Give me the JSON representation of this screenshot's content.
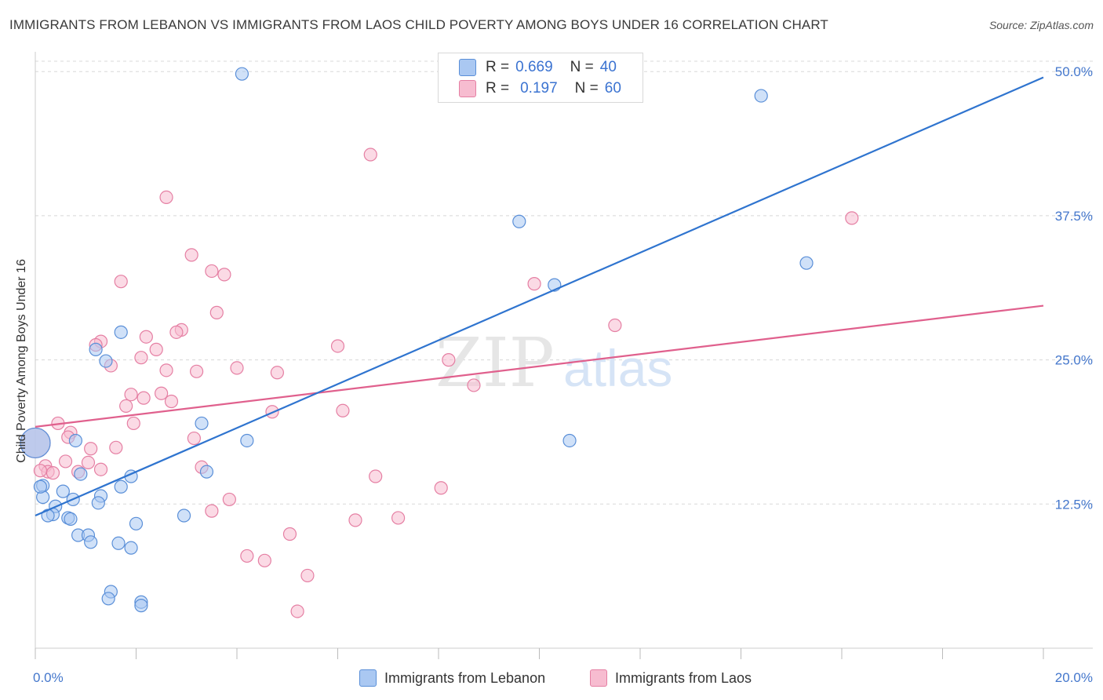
{
  "title": "IMMIGRANTS FROM LEBANON VS IMMIGRANTS FROM LAOS CHILD POVERTY AMONG BOYS UNDER 16 CORRELATION CHART",
  "source": "Source: ZipAtlas.com",
  "colors": {
    "blue_fill": "#aac8f2",
    "blue_stroke": "#5a8fd8",
    "blue_line": "#2f74cf",
    "pink_fill": "#f7bcd0",
    "pink_stroke": "#e57fa3",
    "pink_line": "#e0608d",
    "grid": "#d8d8d8",
    "text_accent": "#3b73d1"
  },
  "legend": {
    "row1": {
      "r_label": "R =",
      "r_value": "0.669",
      "n_label": "N =",
      "n_value": "40"
    },
    "row2": {
      "r_label": "R =",
      "r_value": "0.197",
      "n_label": "N =",
      "n_value": "60"
    }
  },
  "bottom_legend": {
    "series1": "Immigrants from Lebanon",
    "series2": "Immigrants from Laos"
  },
  "chart_data": {
    "type": "scatter",
    "title": "IMMIGRANTS FROM LEBANON VS IMMIGRANTS FROM LAOS CHILD POVERTY AMONG BOYS UNDER 16 CORRELATION CHART",
    "xlabel": "",
    "ylabel": "Child Poverty Among Boys Under 16",
    "xlim": [
      0,
      20
    ],
    "ylim": [
      0,
      50.9
    ],
    "x_tick_labels": [
      "0.0%",
      "20.0%"
    ],
    "y_ticks": [
      12.5,
      25.0,
      37.5,
      50.0
    ],
    "y_tick_labels": [
      "12.5%",
      "25.0%",
      "37.5%",
      "50.0%"
    ],
    "watermark": {
      "zip": "ZIP",
      "atlas": "atlas"
    },
    "series": [
      {
        "name": "Immigrants from Lebanon",
        "R": 0.669,
        "N": 40,
        "trend": {
          "x": [
            0,
            20
          ],
          "y": [
            11.5,
            49.5
          ]
        },
        "points": [
          [
            4.1,
            49.8
          ],
          [
            14.4,
            47.9
          ],
          [
            9.6,
            37.0
          ],
          [
            15.3,
            33.4
          ],
          [
            10.3,
            31.5
          ],
          [
            1.7,
            27.4
          ],
          [
            1.2,
            25.9
          ],
          [
            1.4,
            24.9
          ],
          [
            3.3,
            19.5
          ],
          [
            4.2,
            18.0
          ],
          [
            10.6,
            18.0
          ],
          [
            0.8,
            18.0
          ],
          [
            0.0,
            17.8
          ],
          [
            1.9,
            14.9
          ],
          [
            0.9,
            15.1
          ],
          [
            3.4,
            15.3
          ],
          [
            0.15,
            14.1
          ],
          [
            1.7,
            14.0
          ],
          [
            0.55,
            13.6
          ],
          [
            0.15,
            13.1
          ],
          [
            1.3,
            13.2
          ],
          [
            0.75,
            12.9
          ],
          [
            1.25,
            12.6
          ],
          [
            0.4,
            12.3
          ],
          [
            0.35,
            11.6
          ],
          [
            0.25,
            11.5
          ],
          [
            0.65,
            11.3
          ],
          [
            0.7,
            11.2
          ],
          [
            2.95,
            11.5
          ],
          [
            2.0,
            10.8
          ],
          [
            0.85,
            9.8
          ],
          [
            1.05,
            9.8
          ],
          [
            1.1,
            9.2
          ],
          [
            1.65,
            9.1
          ],
          [
            1.9,
            8.7
          ],
          [
            1.5,
            4.9
          ],
          [
            1.45,
            4.3
          ],
          [
            2.1,
            4.0
          ],
          [
            2.1,
            3.7
          ],
          [
            0.1,
            14.0
          ]
        ]
      },
      {
        "name": "Immigrants from Laos",
        "R": 0.197,
        "N": 60,
        "trend": {
          "x": [
            0,
            20
          ],
          "y": [
            19.2,
            29.7
          ]
        },
        "points": [
          [
            6.65,
            42.8
          ],
          [
            2.6,
            39.1
          ],
          [
            16.2,
            37.3
          ],
          [
            3.1,
            34.1
          ],
          [
            3.5,
            32.7
          ],
          [
            3.75,
            32.4
          ],
          [
            1.7,
            31.8
          ],
          [
            9.9,
            31.6
          ],
          [
            3.6,
            29.1
          ],
          [
            11.5,
            28.0
          ],
          [
            2.9,
            27.6
          ],
          [
            2.8,
            27.4
          ],
          [
            2.2,
            27.0
          ],
          [
            1.3,
            26.6
          ],
          [
            1.2,
            26.3
          ],
          [
            6.0,
            26.2
          ],
          [
            2.4,
            25.9
          ],
          [
            2.1,
            25.2
          ],
          [
            8.2,
            25.0
          ],
          [
            1.5,
            24.5
          ],
          [
            4.0,
            24.3
          ],
          [
            2.6,
            24.1
          ],
          [
            3.2,
            24.0
          ],
          [
            4.8,
            23.9
          ],
          [
            8.7,
            22.8
          ],
          [
            2.5,
            22.1
          ],
          [
            1.9,
            22.0
          ],
          [
            2.15,
            21.7
          ],
          [
            2.7,
            21.4
          ],
          [
            1.8,
            21.0
          ],
          [
            6.1,
            20.6
          ],
          [
            4.7,
            20.5
          ],
          [
            0.45,
            19.5
          ],
          [
            1.95,
            19.5
          ],
          [
            0.7,
            18.7
          ],
          [
            0.65,
            18.3
          ],
          [
            3.15,
            18.2
          ],
          [
            1.1,
            17.3
          ],
          [
            1.6,
            17.4
          ],
          [
            0.0,
            17.8
          ],
          [
            0.6,
            16.2
          ],
          [
            1.05,
            16.1
          ],
          [
            3.3,
            15.7
          ],
          [
            0.2,
            15.8
          ],
          [
            0.25,
            15.3
          ],
          [
            0.35,
            15.2
          ],
          [
            0.85,
            15.3
          ],
          [
            1.3,
            15.5
          ],
          [
            6.75,
            14.9
          ],
          [
            8.05,
            13.9
          ],
          [
            3.85,
            12.9
          ],
          [
            3.5,
            11.9
          ],
          [
            6.35,
            11.1
          ],
          [
            7.2,
            11.3
          ],
          [
            5.05,
            9.9
          ],
          [
            4.2,
            8.0
          ],
          [
            4.55,
            7.6
          ],
          [
            5.4,
            6.3
          ],
          [
            5.2,
            3.2
          ],
          [
            0.1,
            15.4
          ]
        ]
      }
    ]
  }
}
